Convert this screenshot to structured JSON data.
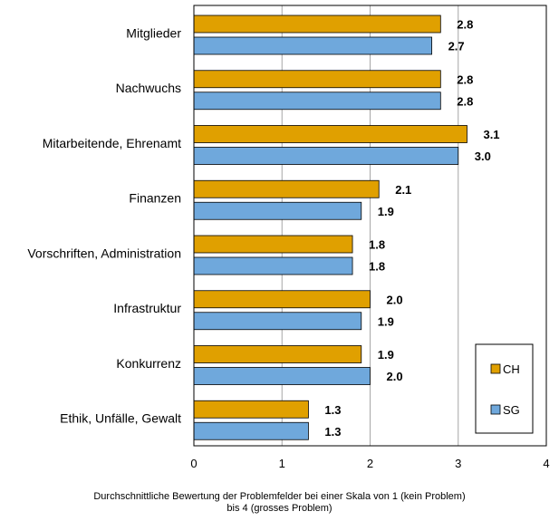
{
  "chart_data": {
    "type": "bar",
    "orientation": "horizontal",
    "categories": [
      "Mitglieder",
      "Nachwuchs",
      "Mitarbeitende, Ehrenamt",
      "Finanzen",
      "Vorschriften, Administration",
      "Infrastruktur",
      "Konkurrenz",
      "Ethik, Unfälle, Gewalt"
    ],
    "series": [
      {
        "name": "CH",
        "color": "#E0A000",
        "values": [
          2.8,
          2.8,
          3.1,
          2.1,
          1.8,
          2.0,
          1.9,
          1.3
        ],
        "labels": [
          "2.8",
          "2.8",
          "3.1",
          "2.1",
          "1.8",
          "2.0",
          "1.9",
          "1.3"
        ]
      },
      {
        "name": "SG",
        "color": "#6FA8DC",
        "values": [
          2.7,
          2.8,
          3.0,
          1.9,
          1.8,
          1.9,
          2.0,
          1.3
        ],
        "labels": [
          "2.7",
          "2.8",
          "3.0",
          "1.9",
          "1.8",
          "1.9",
          "2.0",
          "1.3"
        ]
      }
    ],
    "xlim": [
      0,
      4
    ],
    "xticks": [
      "0",
      "1",
      "2",
      "3",
      "4"
    ],
    "grid": true,
    "legend_position": "bottom-right",
    "xlabel_line1": "Durchschnittliche Bewertung der Problemfelder bei einer Skala von 1 (kein Problem)",
    "xlabel_line2": "bis 4 (grosses Problem)"
  }
}
